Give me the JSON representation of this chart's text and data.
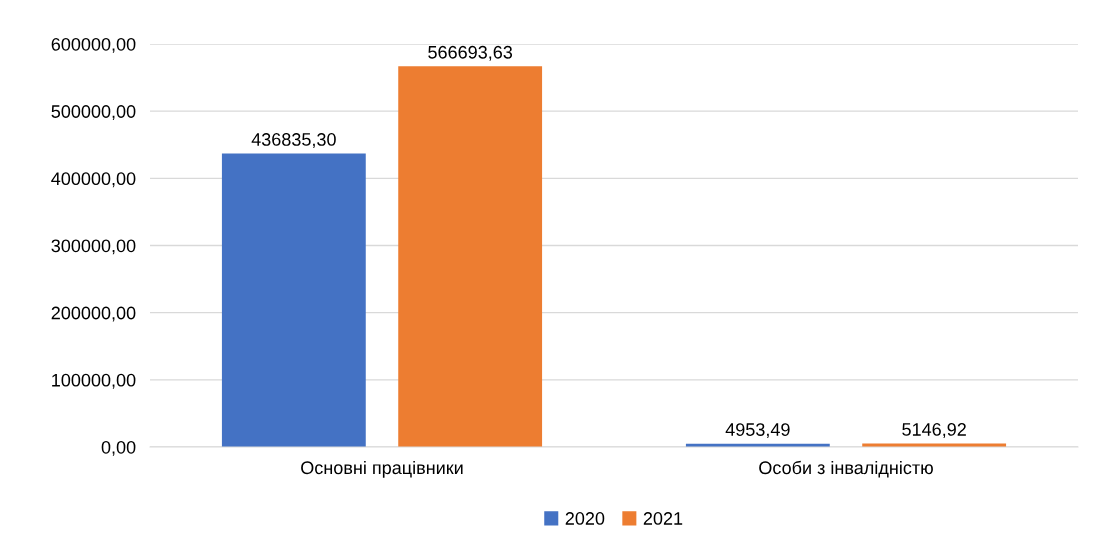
{
  "chart_data": {
    "type": "bar",
    "categories": [
      "Основні працівники",
      "Особи з інвалідністю"
    ],
    "series": [
      {
        "name": "2020",
        "color": "#4472c4",
        "values": [
          436835.3,
          4953.49
        ],
        "value_labels": [
          "436835,30",
          "4953,49"
        ]
      },
      {
        "name": "2021",
        "color": "#ed7d31",
        "values": [
          566693.63,
          5146.92
        ],
        "value_labels": [
          "566693,63",
          "5146,92"
        ]
      }
    ],
    "ylim": [
      0,
      600000
    ],
    "yticks": [
      {
        "value": 0,
        "label": "0,00"
      },
      {
        "value": 100000,
        "label": "100000,00"
      },
      {
        "value": 200000,
        "label": "200000,00"
      },
      {
        "value": 300000,
        "label": "300000,00"
      },
      {
        "value": 400000,
        "label": "400000,00"
      },
      {
        "value": 500000,
        "label": "500000,00"
      },
      {
        "value": 600000,
        "label": "600000,00"
      }
    ],
    "grid": "y",
    "legend": "bottom"
  }
}
